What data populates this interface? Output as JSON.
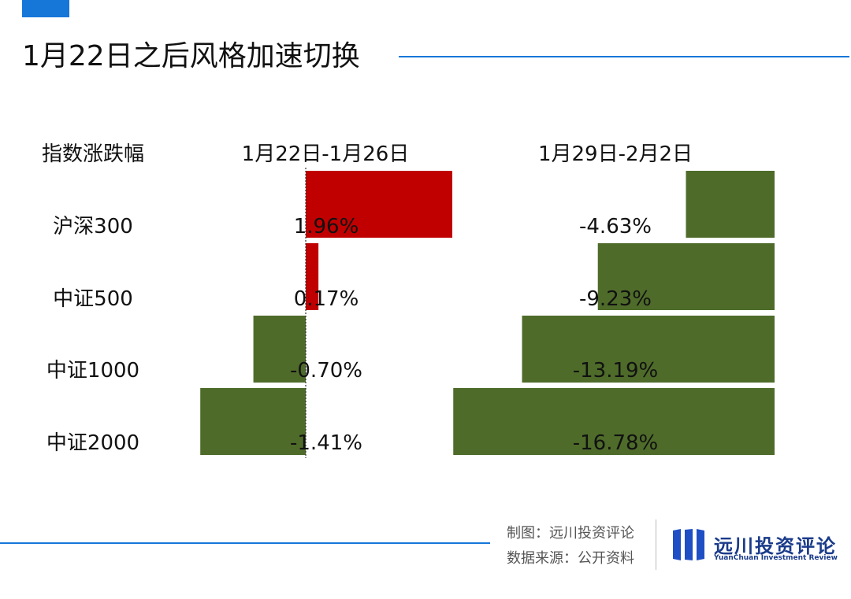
{
  "title": "1月22日之后风格加速切换",
  "chart_data": {
    "type": "bar",
    "orientation": "horizontal",
    "row_header": "指数涨跌幅",
    "categories": [
      "沪深300",
      "中证500",
      "中证1000",
      "中证2000"
    ],
    "panels": [
      {
        "title": "1月22日-1月26日",
        "values": [
          1.96,
          0.17,
          -0.7,
          -1.41
        ],
        "labels": [
          "1.96%",
          "0.17%",
          "-0.70%",
          "-1.41%"
        ]
      },
      {
        "title": "1月29日-2月2日",
        "values": [
          -4.63,
          -9.23,
          -13.19,
          -16.78
        ],
        "labels": [
          "-4.63%",
          "-9.23%",
          "-13.19%",
          "-16.78%"
        ]
      }
    ],
    "colors": {
      "positive": "#c00000",
      "negative": "#4e6b2a"
    }
  },
  "credits": {
    "made_by": "制图：远川投资评论",
    "source": "数据来源：公开资料"
  },
  "logo": {
    "name_cn": "远川投资评论",
    "name_en": "YuanChuan Investment Review"
  }
}
